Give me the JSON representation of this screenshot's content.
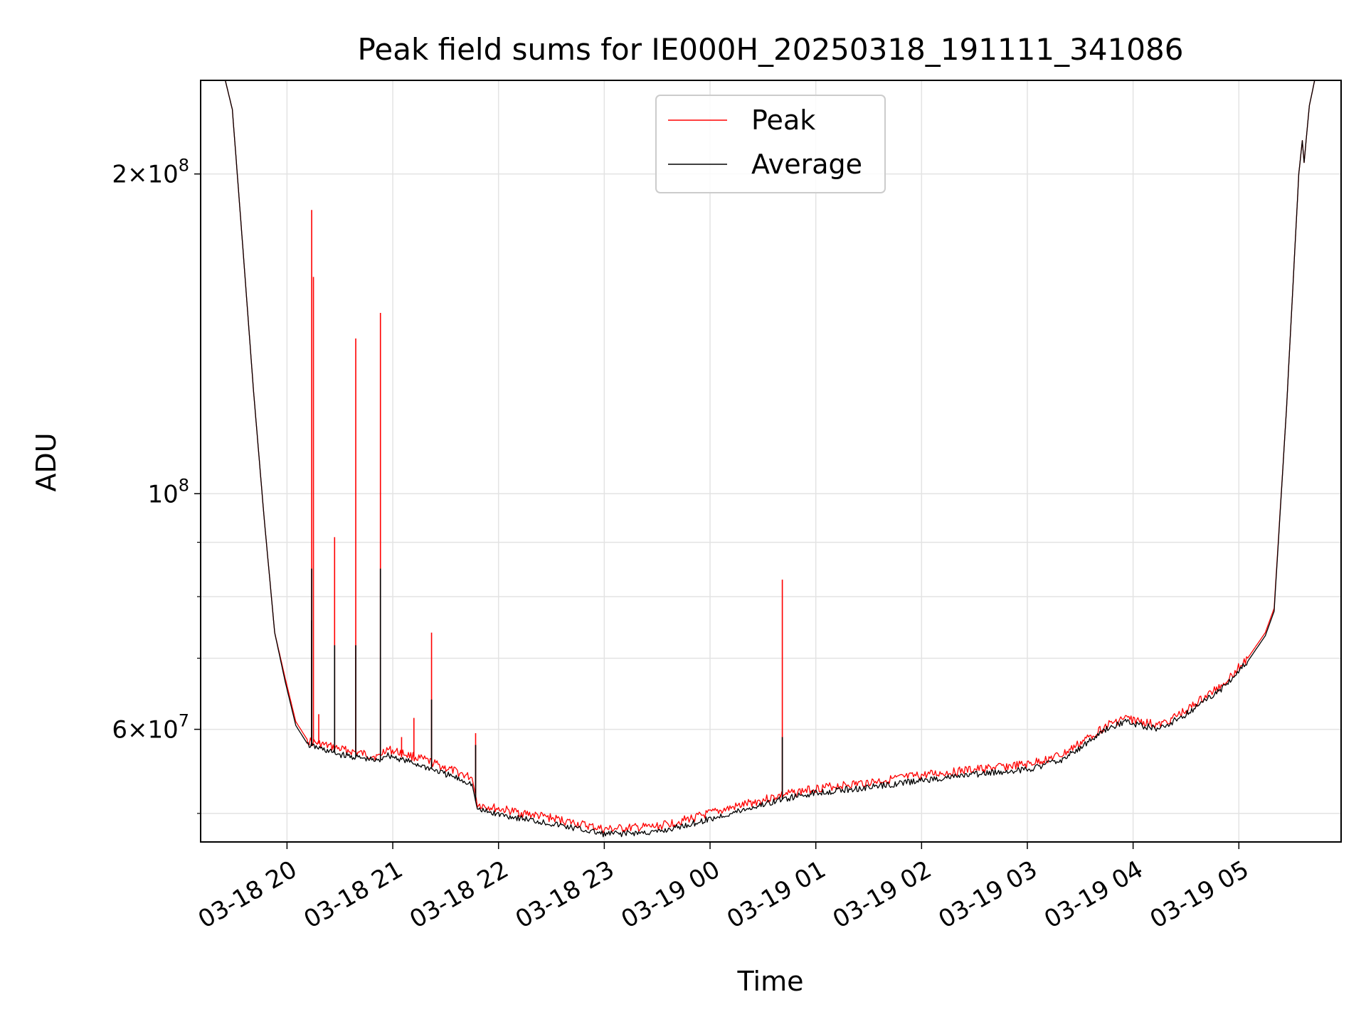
{
  "chart_data": {
    "type": "line",
    "title": "Peak field sums for IE000H_20250318_191111_341086",
    "xlabel": "Time",
    "ylabel": "ADU",
    "y_scale": "log",
    "ylim": [
      47000000,
      245000000
    ],
    "xlim": [
      "2025-03-18 19:11",
      "2025-03-19 05:58"
    ],
    "grid": true,
    "legend": {
      "placement": "upper center",
      "entries": [
        "Peak",
        "Average"
      ]
    },
    "x_ticks": [
      {
        "t": "2025-03-18 20:00",
        "label": "03-18 20"
      },
      {
        "t": "2025-03-18 21:00",
        "label": "03-18 21"
      },
      {
        "t": "2025-03-18 22:00",
        "label": "03-18 22"
      },
      {
        "t": "2025-03-18 23:00",
        "label": "03-18 23"
      },
      {
        "t": "2025-03-19 00:00",
        "label": "03-19 00"
      },
      {
        "t": "2025-03-19 01:00",
        "label": "03-19 01"
      },
      {
        "t": "2025-03-19 02:00",
        "label": "03-19 02"
      },
      {
        "t": "2025-03-19 03:00",
        "label": "03-19 03"
      },
      {
        "t": "2025-03-19 04:00",
        "label": "03-19 04"
      },
      {
        "t": "2025-03-19 05:00",
        "label": "03-19 05"
      }
    ],
    "y_ticks_major": [
      {
        "value": 60000000,
        "mant": "6",
        "exp": "7",
        "kind": "mantissa"
      },
      {
        "value": 100000000,
        "mant": "10",
        "exp": "8",
        "kind": "power"
      },
      {
        "value": 200000000,
        "mant": "2",
        "exp": "8",
        "kind": "mantissa"
      }
    ],
    "y_ticks_minor": [
      50000000,
      70000000,
      80000000,
      90000000
    ],
    "series": [
      {
        "name": "Peak",
        "color": "#ff0000",
        "points": [
          [
            "2025-03-18 19:11",
            245000000
          ],
          [
            "2025-03-18 19:25",
            245000000
          ],
          [
            "2025-03-18 19:29",
            230000000
          ],
          [
            "2025-03-18 19:35",
            170000000
          ],
          [
            "2025-03-18 19:41",
            125000000
          ],
          [
            "2025-03-18 19:47",
            95000000
          ],
          [
            "2025-03-18 19:53",
            74000000
          ],
          [
            "2025-03-18 19:59",
            67000000
          ],
          [
            "2025-03-18 20:05",
            61000000
          ],
          [
            "2025-03-18 20:12",
            58500000
          ],
          [
            "2025-03-18 20:30",
            57500000
          ],
          [
            "2025-03-18 20:52",
            56500000
          ],
          [
            "2025-03-18 20:56",
            57500000
          ],
          [
            "2025-03-18 21:05",
            57000000
          ],
          [
            "2025-03-18 21:20",
            56000000
          ],
          [
            "2025-03-18 21:45",
            54000000
          ],
          [
            "2025-03-18 21:48",
            51000000
          ],
          [
            "2025-03-18 22:00",
            50500000
          ],
          [
            "2025-03-18 22:30",
            49500000
          ],
          [
            "2025-03-18 23:00",
            48300000
          ],
          [
            "2025-03-18 23:30",
            48600000
          ],
          [
            "2025-03-18 23:50",
            49500000
          ],
          [
            "2025-03-19 00:10",
            50500000
          ],
          [
            "2025-03-19 00:40",
            52000000
          ],
          [
            "2025-03-19 01:00",
            52800000
          ],
          [
            "2025-03-19 01:30",
            53500000
          ],
          [
            "2025-03-19 02:00",
            54300000
          ],
          [
            "2025-03-19 02:30",
            55000000
          ],
          [
            "2025-03-19 03:00",
            55600000
          ],
          [
            "2025-03-19 03:20",
            56800000
          ],
          [
            "2025-03-19 03:45",
            60500000
          ],
          [
            "2025-03-19 03:55",
            61500000
          ],
          [
            "2025-03-19 04:15",
            60500000
          ],
          [
            "2025-03-19 04:30",
            62500000
          ],
          [
            "2025-03-19 04:50",
            66000000
          ],
          [
            "2025-03-19 05:05",
            70000000
          ],
          [
            "2025-03-19 05:15",
            74000000
          ],
          [
            "2025-03-19 05:20",
            78000000
          ],
          [
            "2025-03-19 05:27",
            120000000
          ],
          [
            "2025-03-19 05:34",
            200000000
          ],
          [
            "2025-03-19 05:36",
            215000000
          ],
          [
            "2025-03-19 05:37",
            205000000
          ],
          [
            "2025-03-19 05:40",
            232000000
          ],
          [
            "2025-03-19 05:43",
            245000000
          ],
          [
            "2025-03-19 05:58",
            245000000
          ]
        ],
        "spikes": [
          [
            "2025-03-18 20:14",
            185000000
          ],
          [
            "2025-03-18 20:15",
            160000000
          ],
          [
            "2025-03-18 20:18",
            62000000
          ],
          [
            "2025-03-18 20:27",
            91000000
          ],
          [
            "2025-03-18 20:39",
            140000000
          ],
          [
            "2025-03-18 20:53",
            148000000
          ],
          [
            "2025-03-18 21:05",
            59000000
          ],
          [
            "2025-03-18 21:12",
            61500000
          ],
          [
            "2025-03-18 21:22",
            74000000
          ],
          [
            "2025-03-18 21:47",
            59500000
          ],
          [
            "2025-03-19 00:41",
            83000000
          ]
        ]
      },
      {
        "name": "Average",
        "color": "#000000",
        "points": [
          [
            "2025-03-18 19:11",
            245000000
          ],
          [
            "2025-03-18 19:25",
            245000000
          ],
          [
            "2025-03-18 19:29",
            230000000
          ],
          [
            "2025-03-18 19:35",
            170000000
          ],
          [
            "2025-03-18 19:41",
            125000000
          ],
          [
            "2025-03-18 19:47",
            95000000
          ],
          [
            "2025-03-18 19:53",
            74000000
          ],
          [
            "2025-03-18 19:59",
            66500000
          ],
          [
            "2025-03-18 20:05",
            60500000
          ],
          [
            "2025-03-18 20:12",
            58000000
          ],
          [
            "2025-03-18 20:30",
            56800000
          ],
          [
            "2025-03-18 20:52",
            56000000
          ],
          [
            "2025-03-18 20:56",
            56800000
          ],
          [
            "2025-03-18 21:05",
            56200000
          ],
          [
            "2025-03-18 21:20",
            55200000
          ],
          [
            "2025-03-18 21:45",
            53300000
          ],
          [
            "2025-03-18 21:48",
            50400000
          ],
          [
            "2025-03-18 22:00",
            49900000
          ],
          [
            "2025-03-18 22:30",
            48900000
          ],
          [
            "2025-03-18 23:00",
            47800000
          ],
          [
            "2025-03-18 23:30",
            48000000
          ],
          [
            "2025-03-18 23:50",
            48900000
          ],
          [
            "2025-03-19 00:10",
            49900000
          ],
          [
            "2025-03-19 00:40",
            51500000
          ],
          [
            "2025-03-19 01:00",
            52300000
          ],
          [
            "2025-03-19 01:30",
            52900000
          ],
          [
            "2025-03-19 02:00",
            53700000
          ],
          [
            "2025-03-19 02:30",
            54400000
          ],
          [
            "2025-03-19 03:00",
            55000000
          ],
          [
            "2025-03-19 03:20",
            56200000
          ],
          [
            "2025-03-19 03:45",
            60000000
          ],
          [
            "2025-03-19 03:55",
            61000000
          ],
          [
            "2025-03-19 04:15",
            60000000
          ],
          [
            "2025-03-19 04:30",
            62000000
          ],
          [
            "2025-03-19 04:50",
            65500000
          ],
          [
            "2025-03-19 05:05",
            69500000
          ],
          [
            "2025-03-19 05:15",
            73500000
          ],
          [
            "2025-03-19 05:20",
            77500000
          ],
          [
            "2025-03-19 05:27",
            120000000
          ],
          [
            "2025-03-19 05:34",
            200000000
          ],
          [
            "2025-03-19 05:36",
            215000000
          ],
          [
            "2025-03-19 05:37",
            205000000
          ],
          [
            "2025-03-19 05:40",
            232000000
          ],
          [
            "2025-03-19 05:43",
            245000000
          ],
          [
            "2025-03-19 05:58",
            245000000
          ]
        ],
        "spikes": [
          [
            "2025-03-18 20:14",
            85000000
          ],
          [
            "2025-03-18 20:14",
            76000000
          ],
          [
            "2025-03-18 20:27",
            72000000
          ],
          [
            "2025-03-18 20:39",
            72000000
          ],
          [
            "2025-03-18 20:53",
            85000000
          ],
          [
            "2025-03-18 21:22",
            64000000
          ],
          [
            "2025-03-18 21:47",
            58000000
          ],
          [
            "2025-03-19 00:41",
            59000000
          ]
        ]
      }
    ]
  }
}
